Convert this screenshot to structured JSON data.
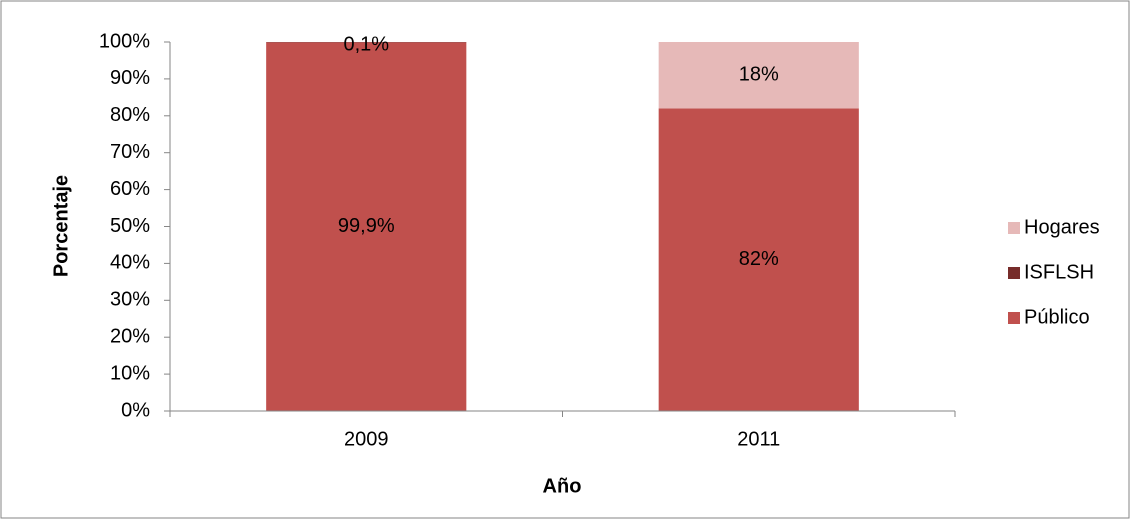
{
  "chart_data": {
    "type": "stacked_bar",
    "categories": [
      "2009",
      "2011"
    ],
    "series": [
      {
        "name": "Público",
        "color": "#c0504d",
        "values": [
          99.9,
          82
        ],
        "value_labels": [
          "99,9%",
          "82%"
        ]
      },
      {
        "name": "ISFLSH",
        "color": "#772c2a",
        "values": [
          0.1,
          0
        ],
        "value_labels": [
          "0,1%",
          null
        ]
      },
      {
        "name": "Hogares",
        "color": "#e6b9b8",
        "values": [
          0,
          18
        ],
        "value_labels": [
          null,
          "18%"
        ]
      }
    ],
    "ylim": [
      0,
      100
    ],
    "yticks": [
      {
        "value": 0,
        "label": "0%"
      },
      {
        "value": 10,
        "label": "10%"
      },
      {
        "value": 20,
        "label": "20%"
      },
      {
        "value": 30,
        "label": "30%"
      },
      {
        "value": 40,
        "label": "40%"
      },
      {
        "value": 50,
        "label": "50%"
      },
      {
        "value": 60,
        "label": "60%"
      },
      {
        "value": 70,
        "label": "70%"
      },
      {
        "value": 80,
        "label": "80%"
      },
      {
        "value": 90,
        "label": "90%"
      },
      {
        "value": 100,
        "label": "100%"
      }
    ],
    "y_label": "Porcentaje",
    "x_label": "Año",
    "legend": "right",
    "grid": false
  }
}
